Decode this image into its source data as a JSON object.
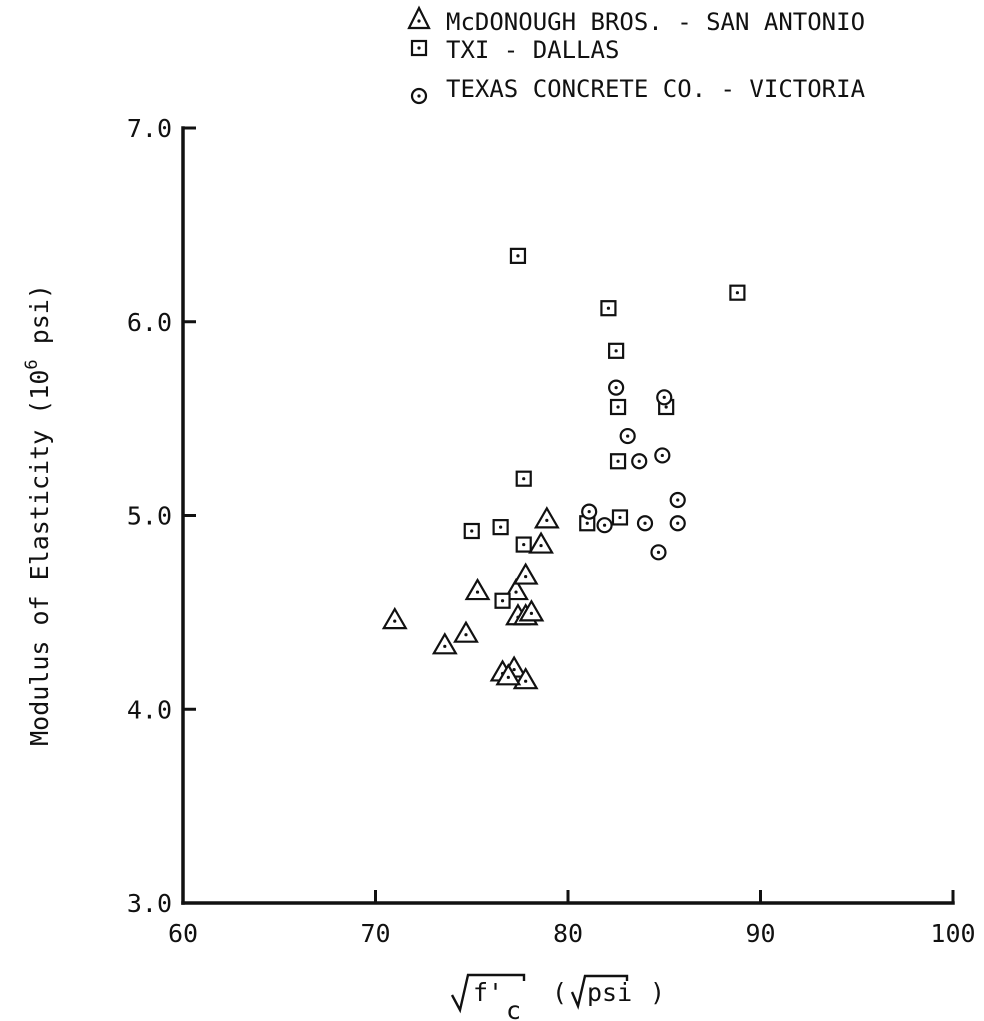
{
  "chart_data": {
    "type": "scatter",
    "title": "",
    "xlabel": "√f'c (√psi)",
    "ylabel": "Modulus of Elasticity (10^6 psi)",
    "xlim": [
      60,
      100
    ],
    "ylim": [
      3.0,
      7.0
    ],
    "x_ticks": [
      "60",
      "70",
      "80",
      "90",
      "100"
    ],
    "y_ticks": [
      "3.0",
      "4.0",
      "5.0",
      "6.0",
      "7.0"
    ],
    "grid": false,
    "legend_position": "top-right",
    "series": [
      {
        "name": "McDONOUGH BROS. - SAN ANTONIO",
        "marker": "triangle",
        "points": [
          [
            71.0,
            4.46
          ],
          [
            73.6,
            4.33
          ],
          [
            74.7,
            4.39
          ],
          [
            75.3,
            4.61
          ],
          [
            76.6,
            4.19
          ],
          [
            77.2,
            4.21
          ],
          [
            77.3,
            4.61
          ],
          [
            77.4,
            4.48
          ],
          [
            77.8,
            4.48
          ],
          [
            77.8,
            4.15
          ],
          [
            77.8,
            4.69
          ],
          [
            78.1,
            4.5
          ],
          [
            78.6,
            4.85
          ],
          [
            78.9,
            4.98
          ],
          [
            76.9,
            4.17
          ]
        ]
      },
      {
        "name": "TXI - DALLAS",
        "marker": "square",
        "points": [
          [
            75.0,
            4.92
          ],
          [
            76.5,
            4.94
          ],
          [
            76.6,
            4.56
          ],
          [
            77.4,
            6.34
          ],
          [
            77.7,
            4.85
          ],
          [
            77.7,
            5.19
          ],
          [
            81.0,
            4.96
          ],
          [
            82.1,
            6.07
          ],
          [
            82.5,
            5.85
          ],
          [
            82.6,
            5.56
          ],
          [
            82.6,
            5.28
          ],
          [
            82.7,
            4.99
          ],
          [
            85.1,
            5.56
          ],
          [
            88.8,
            6.15
          ]
        ]
      },
      {
        "name": "TEXAS CONCRETE CO. - VICTORIA",
        "marker": "circle",
        "points": [
          [
            81.1,
            5.02
          ],
          [
            81.9,
            4.95
          ],
          [
            82.5,
            5.66
          ],
          [
            83.1,
            5.41
          ],
          [
            83.7,
            5.28
          ],
          [
            84.0,
            4.96
          ],
          [
            84.7,
            4.81
          ],
          [
            84.9,
            5.31
          ],
          [
            85.0,
            5.61
          ],
          [
            85.7,
            5.08
          ],
          [
            85.7,
            4.96
          ]
        ]
      }
    ]
  }
}
